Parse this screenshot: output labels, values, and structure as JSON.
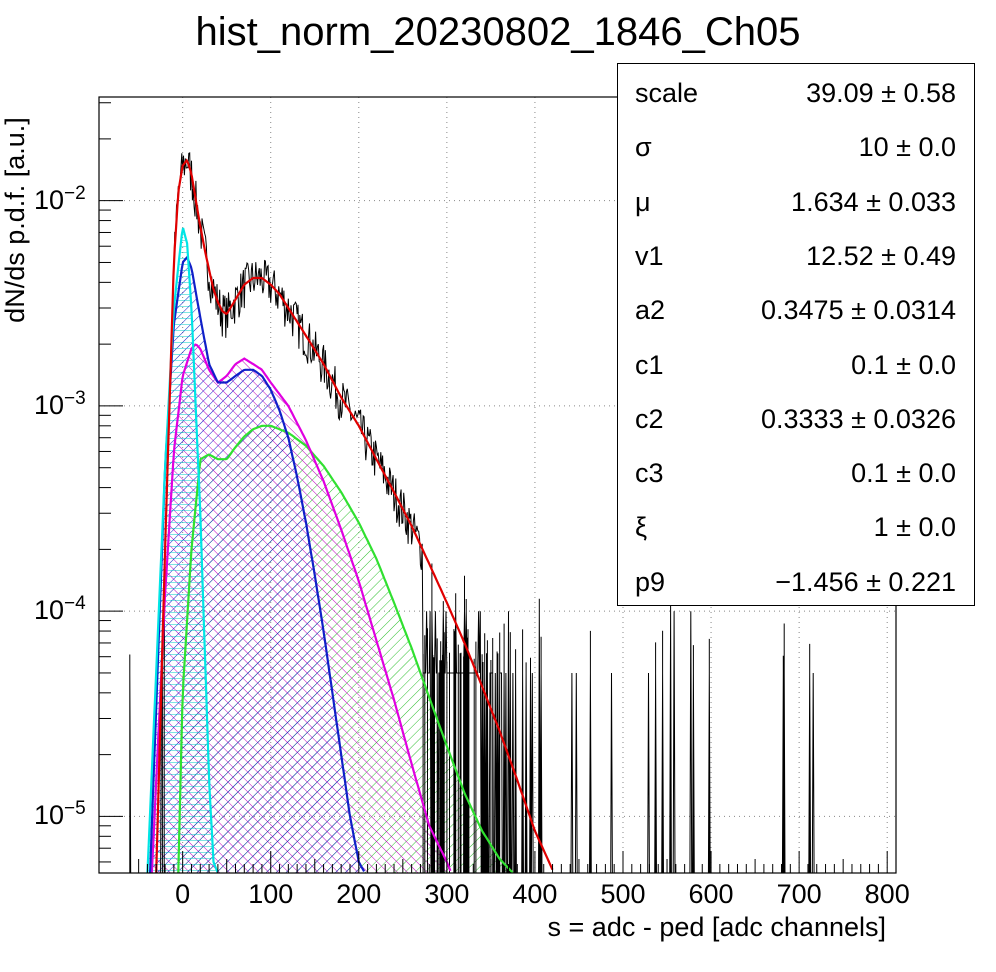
{
  "title": "hist_norm_20230802_1846_Ch05",
  "chart_data": {
    "type": "line",
    "xlabel": "s = adc - ped [adc channels]",
    "ylabel": "dN/ds p.d.f. [a.u.]",
    "xlim": [
      -95,
      810
    ],
    "ylim": [
      5.3e-06,
      0.032
    ],
    "y_scale": "log",
    "grid": true,
    "x_ticks": [
      "0",
      "100",
      "200",
      "300",
      "400",
      "500",
      "600",
      "700",
      "800"
    ],
    "y_ticks": [
      {
        "base": "10",
        "exp": "−2",
        "value": 0.01
      },
      {
        "base": "10",
        "exp": "−3",
        "value": 0.001
      },
      {
        "base": "10",
        "exp": "−4",
        "value": 0.0001
      },
      {
        "base": "10",
        "exp": "−5",
        "value": 1e-05
      }
    ],
    "series": [
      {
        "role": "total",
        "color": "#e00000",
        "x": [
          -30,
          -20,
          -10,
          -5,
          0,
          5,
          10,
          15,
          20,
          25,
          30,
          35,
          40,
          45,
          50,
          60,
          70,
          80,
          90,
          100,
          110,
          120,
          140,
          160,
          180,
          200,
          220,
          240,
          260,
          280,
          300,
          320,
          340,
          360,
          380,
          400,
          420
        ],
        "y": [
          5.3e-06,
          0.0002,
          0.005,
          0.011,
          0.0148,
          0.0158,
          0.0135,
          0.01,
          0.0075,
          0.0058,
          0.0046,
          0.0037,
          0.0032,
          0.0029,
          0.0028,
          0.0033,
          0.0039,
          0.0042,
          0.0042,
          0.0039,
          0.0035,
          0.003,
          0.0022,
          0.0016,
          0.0011,
          0.0008,
          0.00055,
          0.00038,
          0.00026,
          0.00017,
          0.00011,
          7e-05,
          4.3e-05,
          2.6e-05,
          1.5e-05,
          8.5e-06,
          5.5e-06
        ]
      },
      {
        "role": "component 1",
        "color": "#00e5e5",
        "x": [
          -40,
          -20,
          -10,
          0,
          5,
          10,
          20,
          30,
          35,
          40
        ],
        "y": [
          5.3e-06,
          0.0005,
          0.003,
          0.0075,
          0.0062,
          0.003,
          0.0003,
          1.5e-05,
          6e-06,
          5.3e-06
        ]
      },
      {
        "role": "component 2",
        "color": "#1020c8",
        "x": [
          -37,
          -20,
          -10,
          0,
          5,
          10,
          20,
          30,
          40,
          50,
          60,
          70,
          80,
          90,
          100,
          110,
          120,
          130,
          140,
          150,
          160,
          170,
          180,
          190,
          200,
          207
        ],
        "y": [
          5.3e-06,
          0.0005,
          0.0025,
          0.005,
          0.0053,
          0.0047,
          0.0027,
          0.0016,
          0.0013,
          0.0013,
          0.0014,
          0.0015,
          0.0015,
          0.0014,
          0.0012,
          0.00095,
          0.0007,
          0.00045,
          0.00027,
          0.00015,
          8e-05,
          4e-05,
          2e-05,
          1e-05,
          6e-06,
          5.3e-06
        ]
      },
      {
        "role": "component 3",
        "color": "#e000e0",
        "x": [
          -35,
          -20,
          -10,
          0,
          10,
          15,
          20,
          30,
          40,
          50,
          60,
          70,
          80,
          90,
          100,
          120,
          140,
          160,
          180,
          200,
          220,
          240,
          260,
          280,
          300,
          305
        ],
        "y": [
          5.3e-06,
          0.00012,
          0.0006,
          0.0014,
          0.0019,
          0.002,
          0.0019,
          0.0015,
          0.0013,
          0.0014,
          0.0016,
          0.0017,
          0.0016,
          0.0015,
          0.0013,
          0.001,
          0.00068,
          0.00043,
          0.00025,
          0.00014,
          7.2e-05,
          3.7e-05,
          1.8e-05,
          9e-06,
          6e-06,
          5.3e-06
        ]
      },
      {
        "role": "component 4",
        "color": "#30e030",
        "x": [
          -5,
          0,
          10,
          20,
          30,
          40,
          50,
          60,
          70,
          80,
          90,
          100,
          120,
          140,
          160,
          180,
          200,
          220,
          240,
          260,
          280,
          300,
          320,
          340,
          360,
          375
        ],
        "y": [
          5.3e-06,
          4e-05,
          0.0002,
          0.00055,
          0.00058,
          0.00055,
          0.00055,
          0.00063,
          0.00071,
          0.00077,
          0.0008,
          0.0008,
          0.00074,
          0.00064,
          0.00051,
          0.00038,
          0.00027,
          0.00018,
          0.00011,
          6.6e-05,
          3.8e-05,
          2.2e-05,
          1.3e-05,
          8.5e-06,
          6.2e-06,
          5.3e-06
        ]
      }
    ],
    "data_noise_seed": 7
  },
  "stats": [
    {
      "name": "scale",
      "value": "39.09 ± 0.58"
    },
    {
      "name": "σ",
      "value": "10 ± 0.0"
    },
    {
      "name": "μ",
      "value": "1.634 ± 0.033"
    },
    {
      "name": "v1",
      "value": "12.52 ± 0.49"
    },
    {
      "name": "a2",
      "value": "0.3475 ± 0.0314"
    },
    {
      "name": "c1",
      "value": "0.1 ± 0.0"
    },
    {
      "name": "c2",
      "value": "0.3333 ± 0.0326"
    },
    {
      "name": "c3",
      "value": "0.1 ± 0.0"
    },
    {
      "name": "ξ",
      "value": "1 ± 0.0"
    },
    {
      "name": "p9",
      "value": "−1.456 ± 0.221"
    }
  ]
}
